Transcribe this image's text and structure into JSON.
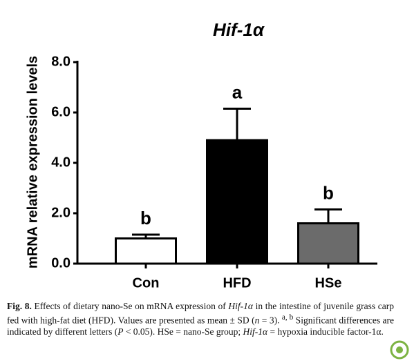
{
  "chart_data": {
    "type": "bar",
    "title": "Hif-1α",
    "y_label": "mRNA relative expression levels",
    "categories": [
      "Con",
      "HFD",
      "HSe"
    ],
    "values": [
      1.0,
      4.9,
      1.6
    ],
    "errors": [
      0.15,
      1.25,
      0.55
    ],
    "colors": [
      "#ffffff",
      "#000000",
      "#6b6b6b"
    ],
    "annotations": [
      "b",
      "a",
      "b"
    ],
    "ylim": [
      0,
      8
    ],
    "yticks": [
      {
        "value": 0,
        "label": "0.0"
      },
      {
        "value": 2,
        "label": "2.0"
      },
      {
        "value": 4,
        "label": "4.0"
      },
      {
        "value": 6,
        "label": "6.0"
      },
      {
        "value": 8,
        "label": "8.0"
      }
    ],
    "grid": false
  },
  "caption": [
    "Fig. 8.",
    " Effects of dietary nano-Se on mRNA expression of ",
    "Hif-1α",
    " in the intestine of juvenile grass carp fed with high-fat diet (HFD). Values are presented as mean ± SD (",
    "n",
    " = 3). ",
    "a, b",
    " Significant differences are indicated by different letters (",
    "P",
    " < 0.05). HSe = nano-Se group; ",
    "Hif-1α",
    " = hypoxia inducible factor-1α."
  ]
}
